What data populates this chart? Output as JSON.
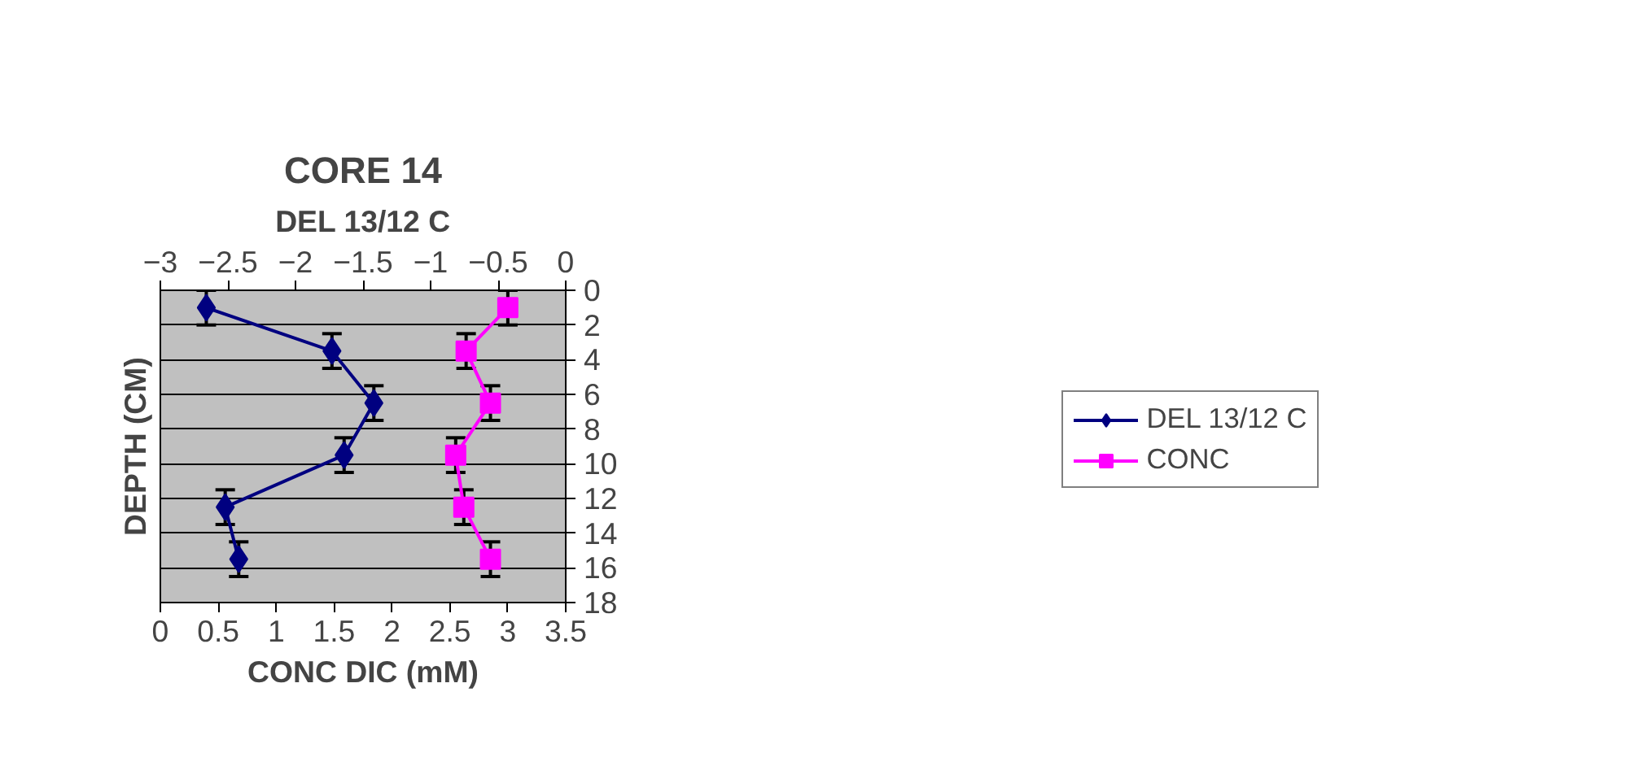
{
  "chart_data": {
    "type": "line",
    "title": "CORE 14",
    "xlabel": "CONC DIC (mM)",
    "x2label": "DEL 13/12 C",
    "ylabel": "DEPTH (CM)",
    "xlim": [
      0,
      3.5
    ],
    "xticks": [
      0,
      0.5,
      1,
      1.5,
      2,
      2.5,
      3,
      3.5
    ],
    "x2lim": [
      -3,
      0
    ],
    "x2ticks": [
      -3,
      -2.5,
      -2,
      -1.5,
      -1,
      -0.5,
      0
    ],
    "ylim": [
      18,
      0
    ],
    "yticks": [
      0,
      2,
      4,
      6,
      8,
      10,
      12,
      14,
      16,
      18
    ],
    "grid": "y",
    "legend": "right",
    "series": [
      {
        "name": "DEL 13/12 C",
        "color": "#000080",
        "marker": "diamond",
        "axis": "x2",
        "x": [
          -2.66,
          -1.73,
          -1.42,
          -1.64,
          -2.52,
          -2.42
        ],
        "values": [
          1,
          3.5,
          6.5,
          9.5,
          12.5,
          15.5
        ],
        "errors": [
          1,
          1,
          1,
          1,
          1,
          1
        ]
      },
      {
        "name": "CONC",
        "color": "#ff00ff",
        "marker": "square",
        "x": [
          3.0,
          2.64,
          2.85,
          2.55,
          2.62,
          2.85
        ],
        "values": [
          1,
          3.5,
          6.5,
          9.5,
          12.5,
          15.5
        ],
        "errors": [
          1,
          1,
          1,
          1,
          1,
          1
        ]
      }
    ]
  }
}
